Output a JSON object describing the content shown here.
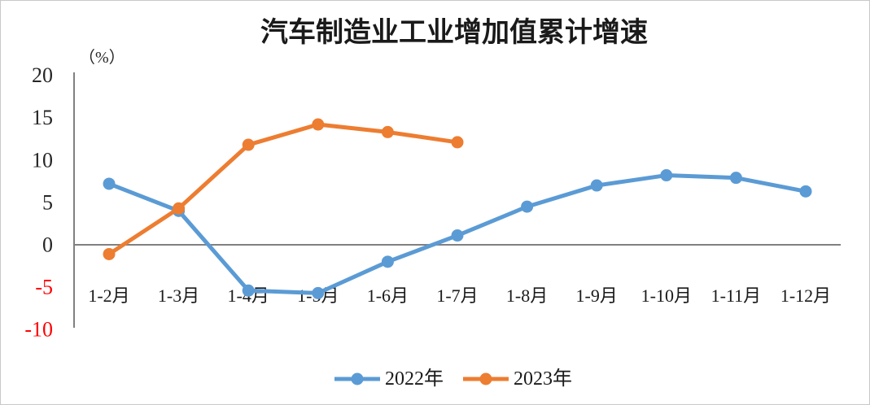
{
  "chart_data": {
    "type": "line",
    "title": "汽车制造业工业增加值累计增速",
    "unit_label": "（%）",
    "xlabel": "",
    "ylabel": "%",
    "categories": [
      "1-2月",
      "1-3月",
      "1-4月",
      "1-5月",
      "1-6月",
      "1-7月",
      "1-8月",
      "1-9月",
      "1-10月",
      "1-11月",
      "1-12月"
    ],
    "series": [
      {
        "name": "2022年",
        "color": "#5B9BD5",
        "values": [
          7.2,
          4.0,
          -5.4,
          -5.7,
          -2.0,
          1.1,
          4.5,
          7.0,
          8.2,
          7.9,
          6.3
        ]
      },
      {
        "name": "2023年",
        "color": "#ED7D31",
        "values": [
          -1.1,
          4.3,
          11.8,
          14.2,
          13.3,
          12.1
        ]
      }
    ],
    "y_ticks": [
      20,
      15,
      10,
      5,
      0,
      -5,
      -10
    ],
    "ylim": [
      -10,
      20
    ],
    "grid": false,
    "legend_position": "bottom",
    "colors": {
      "axis": "#808080",
      "tick_label": "#262626",
      "negative_tick_label": "#ff0000"
    }
  }
}
